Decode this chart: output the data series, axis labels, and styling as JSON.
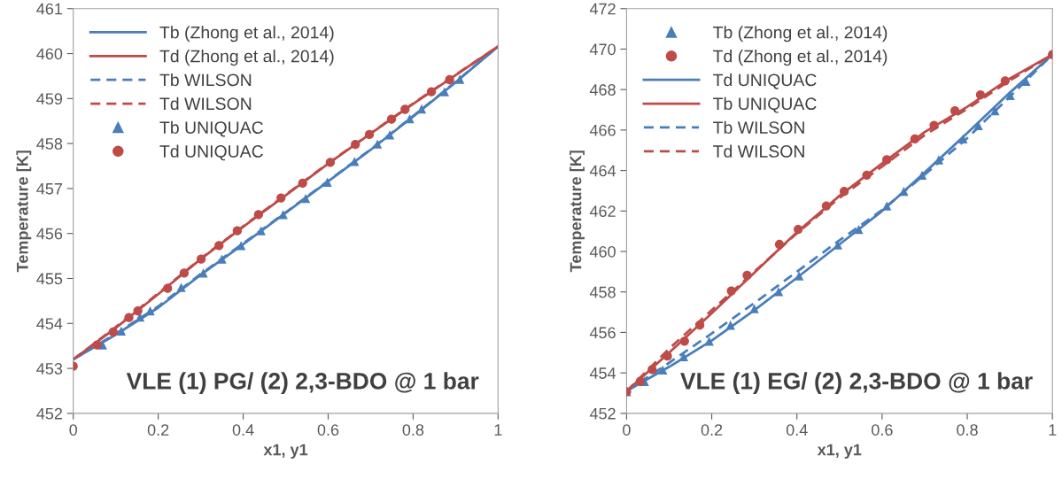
{
  "chart_data": [
    {
      "type": "line",
      "xlabel": "x1, y1",
      "ylabel": "Temperature [K]",
      "xlim": [
        0,
        1
      ],
      "xticks": [
        0,
        0.2,
        0.4,
        0.6,
        0.8,
        1
      ],
      "ylim": [
        452,
        461
      ],
      "yticks": [
        452,
        453,
        454,
        455,
        456,
        457,
        458,
        459,
        460,
        461
      ],
      "grid": false,
      "legend": "top left",
      "annotations": [
        "VLE (1) PG/ (2) 2,3-BDO @ 1 bar"
      ],
      "series": [
        {
          "name": "Tb (Zhong et al., 2014)",
          "line_style": "solid",
          "color": "#4a7ebb",
          "x": [
            0,
            0.1,
            0.2,
            0.3,
            0.4,
            0.5,
            0.6,
            0.7,
            0.8,
            0.9,
            1
          ],
          "values": [
            453.2,
            453.75,
            454.35,
            455.08,
            455.76,
            456.46,
            457.16,
            457.86,
            458.6,
            459.36,
            460.16
          ]
        },
        {
          "name": "Td (Zhong et al., 2014)",
          "line_style": "solid",
          "color": "#be4b48",
          "x": [
            0,
            0.1,
            0.2,
            0.3,
            0.4,
            0.5,
            0.6,
            0.7,
            0.8,
            0.9,
            1
          ],
          "values": [
            453.2,
            453.9,
            454.65,
            455.43,
            456.15,
            456.85,
            457.55,
            458.22,
            458.88,
            459.52,
            460.16
          ]
        },
        {
          "name": "Tb WILSON",
          "line_style": "dashed",
          "color": "#4a7ebb",
          "x": [
            0,
            0.1,
            0.2,
            0.3,
            0.4,
            0.5,
            0.6,
            0.7,
            0.8,
            0.9,
            1
          ],
          "values": [
            453.2,
            453.77,
            454.38,
            455.1,
            455.78,
            456.47,
            457.17,
            457.87,
            458.61,
            459.37,
            460.16
          ]
        },
        {
          "name": "Td WILSON",
          "line_style": "dashed",
          "color": "#be4b48",
          "x": [
            0,
            0.1,
            0.2,
            0.3,
            0.4,
            0.5,
            0.6,
            0.7,
            0.8,
            0.9,
            1
          ],
          "values": [
            453.2,
            453.92,
            454.67,
            455.44,
            456.16,
            456.86,
            457.56,
            458.23,
            458.89,
            459.53,
            460.16
          ]
        },
        {
          "name": "Tb UNIQUAC",
          "type": "scatter",
          "marker": "triangle",
          "color": "#4a7ebb",
          "x": [
            0.069,
            0.113,
            0.157,
            0.181,
            0.254,
            0.306,
            0.35,
            0.395,
            0.442,
            0.494,
            0.547,
            0.598,
            0.662,
            0.716,
            0.745,
            0.792,
            0.82,
            0.874,
            0.91
          ],
          "values": [
            453.52,
            453.83,
            454.14,
            454.28,
            454.8,
            455.12,
            455.43,
            455.73,
            456.06,
            456.42,
            456.78,
            457.14,
            457.6,
            457.99,
            458.19,
            458.55,
            458.77,
            459.15,
            459.43
          ]
        },
        {
          "name": "Td UNIQUAC",
          "type": "scatter",
          "marker": "circle",
          "color": "#be4b48",
          "x": [
            0,
            0.056,
            0.094,
            0.131,
            0.152,
            0.222,
            0.261,
            0.301,
            0.343,
            0.386,
            0.436,
            0.489,
            0.54,
            0.605,
            0.664,
            0.697,
            0.749,
            0.781,
            0.843,
            0.886
          ],
          "values": [
            453.05,
            453.52,
            453.81,
            454.13,
            454.28,
            454.78,
            455.12,
            455.43,
            455.73,
            456.06,
            456.42,
            456.79,
            457.12,
            457.58,
            457.98,
            458.2,
            458.54,
            458.76,
            459.15,
            459.42
          ]
        }
      ]
    },
    {
      "type": "line",
      "xlabel": "x1, y1",
      "ylabel": "Temperature [K]",
      "xlim": [
        0,
        1
      ],
      "xticks": [
        0,
        0.2,
        0.4,
        0.6,
        0.8,
        1
      ],
      "ylim": [
        452,
        472
      ],
      "yticks": [
        452,
        454,
        456,
        458,
        460,
        462,
        464,
        466,
        468,
        470,
        472
      ],
      "grid": false,
      "legend": "top left",
      "annotations": [
        "VLE (1) EG/ (2) 2,3-BDO @ 1 bar"
      ],
      "series": [
        {
          "name": "Tb (Zhong et al., 2014)",
          "type": "scatter",
          "marker": "triangle",
          "color": "#4a7ebb",
          "x": [
            0,
            0.042,
            0.085,
            0.134,
            0.194,
            0.244,
            0.3,
            0.357,
            0.405,
            0.496,
            0.545,
            0.611,
            0.651,
            0.694,
            0.733,
            0.79,
            0.826,
            0.865,
            0.901,
            0.938
          ],
          "values": [
            453.07,
            453.58,
            454.14,
            454.8,
            455.57,
            456.36,
            457.17,
            458.02,
            458.79,
            460.32,
            461.09,
            462.25,
            462.97,
            463.77,
            464.53,
            465.56,
            466.22,
            466.95,
            467.71,
            468.41
          ]
        },
        {
          "name": "Td (Zhong et al., 2014)",
          "type": "scatter",
          "marker": "circle",
          "color": "#be4b48",
          "x": [
            0,
            0.032,
            0.06,
            0.096,
            0.136,
            0.172,
            0.246,
            0.283,
            0.359,
            0.403,
            0.469,
            0.511,
            0.564,
            0.611,
            0.677,
            0.722,
            0.771,
            0.831,
            0.889,
            1
          ],
          "values": [
            453.07,
            453.58,
            454.17,
            454.83,
            455.57,
            456.36,
            458.05,
            458.82,
            460.35,
            461.09,
            462.25,
            462.97,
            463.77,
            464.53,
            465.56,
            466.23,
            466.95,
            467.74,
            468.43,
            469.73
          ]
        },
        {
          "name": "Td UNIQUAC",
          "line_style": "solid",
          "color": "#4a7ebb",
          "x": [
            0,
            0.1,
            0.2,
            0.3,
            0.4,
            0.5,
            0.6,
            0.7,
            0.8,
            0.9,
            1
          ],
          "values": [
            453.1,
            454.3,
            455.6,
            457.1,
            458.7,
            460.35,
            462.0,
            463.9,
            465.85,
            467.85,
            469.73
          ]
        },
        {
          "name": "Tb UNIQUAC",
          "line_style": "solid",
          "color": "#be4b48",
          "x": [
            0,
            0.1,
            0.2,
            0.3,
            0.4,
            0.5,
            0.6,
            0.7,
            0.8,
            0.9,
            1
          ],
          "values": [
            453.1,
            455.0,
            456.95,
            458.95,
            460.95,
            462.75,
            464.35,
            465.9,
            467.15,
            468.55,
            469.73
          ]
        },
        {
          "name": "Tb WILSON",
          "line_style": "dashed",
          "color": "#4a7ebb",
          "x": [
            0,
            0.1,
            0.2,
            0.3,
            0.4,
            0.5,
            0.6,
            0.7,
            0.8,
            0.9,
            1
          ],
          "values": [
            453.1,
            454.5,
            455.95,
            457.45,
            459.0,
            460.55,
            462.05,
            463.8,
            465.6,
            467.65,
            469.73
          ]
        },
        {
          "name": "Td WILSON",
          "line_style": "dashed",
          "color": "#be4b48",
          "x": [
            0,
            0.1,
            0.2,
            0.3,
            0.4,
            0.5,
            0.6,
            0.7,
            0.8,
            0.9,
            1
          ],
          "values": [
            453.1,
            455.2,
            457.1,
            459.0,
            460.9,
            462.65,
            464.2,
            465.75,
            467.05,
            468.45,
            469.73
          ]
        }
      ]
    }
  ]
}
